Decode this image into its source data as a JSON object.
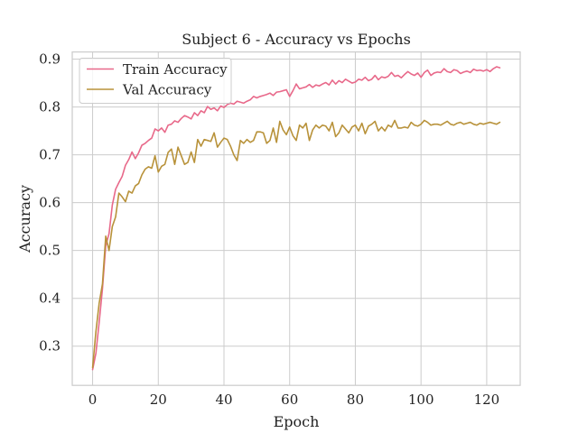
{
  "chart_data": {
    "type": "line",
    "title": "Subject 6 - Accuracy vs Epochs",
    "xlabel": "Epoch",
    "ylabel": "Accuracy",
    "xlim": [
      -6.2,
      130.2
    ],
    "ylim": [
      0.218,
      0.915
    ],
    "xticks": [
      0,
      20,
      40,
      60,
      80,
      100,
      120
    ],
    "yticks": [
      0.3,
      0.4,
      0.5,
      0.6,
      0.7,
      0.8,
      0.9
    ],
    "grid": true,
    "legend_position": "top-left",
    "series": [
      {
        "name": "Train Accuracy",
        "color": "#e8698a",
        "values": [
          0.251,
          0.285,
          0.35,
          0.42,
          0.51,
          0.535,
          0.595,
          0.628,
          0.642,
          0.655,
          0.678,
          0.69,
          0.706,
          0.692,
          0.704,
          0.72,
          0.724,
          0.73,
          0.735,
          0.754,
          0.75,
          0.756,
          0.747,
          0.762,
          0.764,
          0.771,
          0.768,
          0.776,
          0.782,
          0.779,
          0.775,
          0.788,
          0.782,
          0.792,
          0.788,
          0.801,
          0.795,
          0.798,
          0.792,
          0.802,
          0.799,
          0.805,
          0.808,
          0.806,
          0.812,
          0.81,
          0.808,
          0.812,
          0.815,
          0.822,
          0.819,
          0.822,
          0.824,
          0.826,
          0.829,
          0.824,
          0.831,
          0.832,
          0.834,
          0.836,
          0.822,
          0.834,
          0.848,
          0.838,
          0.84,
          0.842,
          0.847,
          0.841,
          0.846,
          0.844,
          0.848,
          0.851,
          0.846,
          0.856,
          0.848,
          0.855,
          0.851,
          0.858,
          0.854,
          0.85,
          0.852,
          0.858,
          0.856,
          0.862,
          0.855,
          0.858,
          0.866,
          0.857,
          0.863,
          0.861,
          0.864,
          0.872,
          0.864,
          0.866,
          0.861,
          0.868,
          0.874,
          0.869,
          0.866,
          0.871,
          0.862,
          0.872,
          0.877,
          0.866,
          0.871,
          0.873,
          0.872,
          0.88,
          0.874,
          0.872,
          0.878,
          0.876,
          0.87,
          0.873,
          0.875,
          0.872,
          0.879,
          0.876,
          0.877,
          0.875,
          0.878,
          0.874,
          0.88,
          0.884,
          0.882
        ]
      },
      {
        "name": "Val Accuracy",
        "color": "#b8923a",
        "values": [
          0.255,
          0.33,
          0.39,
          0.43,
          0.53,
          0.5,
          0.55,
          0.57,
          0.62,
          0.612,
          0.602,
          0.624,
          0.62,
          0.635,
          0.64,
          0.658,
          0.67,
          0.675,
          0.672,
          0.698,
          0.664,
          0.676,
          0.68,
          0.705,
          0.712,
          0.68,
          0.716,
          0.698,
          0.68,
          0.684,
          0.706,
          0.684,
          0.732,
          0.718,
          0.732,
          0.73,
          0.728,
          0.746,
          0.716,
          0.726,
          0.735,
          0.732,
          0.718,
          0.7,
          0.688,
          0.73,
          0.724,
          0.732,
          0.726,
          0.73,
          0.748,
          0.748,
          0.746,
          0.724,
          0.73,
          0.756,
          0.726,
          0.77,
          0.752,
          0.742,
          0.758,
          0.74,
          0.73,
          0.762,
          0.756,
          0.766,
          0.73,
          0.752,
          0.762,
          0.756,
          0.762,
          0.76,
          0.75,
          0.768,
          0.738,
          0.746,
          0.762,
          0.754,
          0.746,
          0.758,
          0.762,
          0.75,
          0.766,
          0.744,
          0.76,
          0.764,
          0.77,
          0.75,
          0.758,
          0.75,
          0.762,
          0.758,
          0.772,
          0.756,
          0.756,
          0.758,
          0.756,
          0.768,
          0.762,
          0.76,
          0.764,
          0.772,
          0.768,
          0.762,
          0.764,
          0.764,
          0.762,
          0.766,
          0.77,
          0.764,
          0.762,
          0.766,
          0.768,
          0.764,
          0.766,
          0.768,
          0.764,
          0.762,
          0.766,
          0.764,
          0.766,
          0.768,
          0.766,
          0.764,
          0.768
        ]
      }
    ]
  }
}
